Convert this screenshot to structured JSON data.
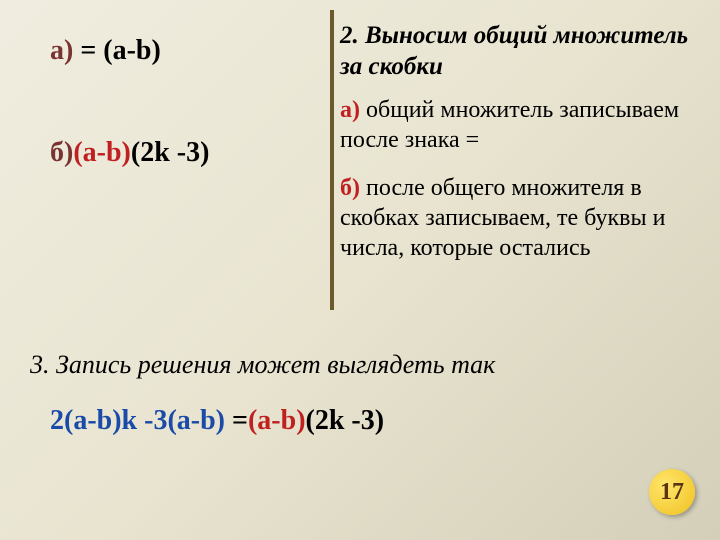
{
  "left": {
    "a": {
      "label": "а)",
      "expr": " = (a-b)"
    },
    "b": {
      "label": "б)",
      "expr_red": "(a-b)",
      "expr_black": "(2k -3)"
    }
  },
  "right": {
    "step2": "2.  Выносим  общий  множитель  за  скобки",
    "a": {
      "label": "а)",
      "text": " общий  множитель  записываем  после  знака  ="
    },
    "b": {
      "label": "б)",
      "text": " после  общего  множителя  в  скобках  записываем,  те  буквы  и  числа,  которые  остались"
    }
  },
  "step3": "3. Запись  решения  может  выглядеть  так",
  "equation": {
    "lhs": "2(a-b)k -3(a-b) ",
    "eq": "=",
    "rhs_red": "(a-b)",
    "rhs_black": "(2k -3)"
  },
  "page": "17"
}
